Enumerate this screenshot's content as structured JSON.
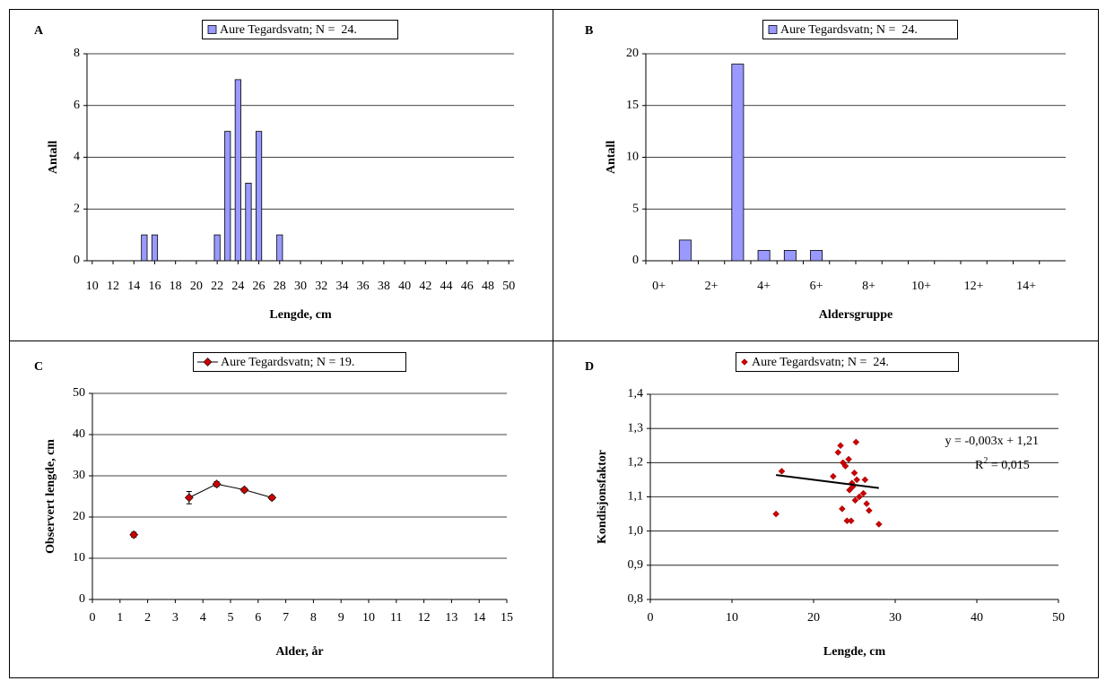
{
  "chart_data": [
    {
      "type": "bar",
      "panel_label": "A",
      "xlabel": "Lengde, cm",
      "ylabel": "Antall",
      "x": [
        15,
        16,
        22,
        23,
        24,
        25,
        26,
        28
      ],
      "series": [
        {
          "name": "Aure Tegardsvatn; N =  24.",
          "color": "#9999ff",
          "values": [
            1,
            1,
            1,
            5,
            7,
            3,
            5,
            1
          ]
        }
      ],
      "xlim": [
        9.5,
        50.5
      ],
      "xticks": [
        10,
        12,
        14,
        16,
        18,
        20,
        22,
        24,
        26,
        28,
        30,
        32,
        34,
        36,
        38,
        40,
        42,
        44,
        46,
        48,
        50
      ],
      "ylim": [
        0,
        8
      ],
      "yticks": [
        0,
        2,
        4,
        6,
        8
      ],
      "grid": true,
      "legend": "top"
    },
    {
      "type": "bar",
      "panel_label": "B",
      "xlabel": "Aldersgruppe",
      "ylabel": "Antall",
      "categories": [
        "0+",
        null,
        "2+",
        null,
        "4+",
        null,
        "6+",
        null,
        "8+",
        null,
        "10+",
        null,
        "12+",
        null,
        "14+",
        null
      ],
      "series": [
        {
          "name": "Aure Tegardsvatn; N =  24.",
          "color": "#9999ff",
          "values": [
            0,
            2,
            0,
            19,
            1,
            1,
            1,
            0,
            0,
            0,
            0,
            0,
            0,
            0,
            0,
            0
          ]
        }
      ],
      "ylim": [
        0,
        20
      ],
      "yticks": [
        0,
        5,
        10,
        15,
        20
      ],
      "grid": true,
      "legend": "top"
    },
    {
      "type": "line",
      "panel_label": "C",
      "xlabel": "Alder, år",
      "ylabel": "Observert lengde, cm",
      "x": [
        1.5,
        2.5,
        3.5,
        4.5,
        5.5,
        6.5
      ],
      "series": [
        {
          "name": "Aure Tegardsvatn; N = 19.",
          "color": "#cc0000",
          "values": [
            15.7,
            null,
            24.7,
            28.0,
            26.6,
            24.7
          ],
          "errors": [
            0.6,
            null,
            1.5,
            0.6,
            0.5,
            0.5
          ]
        }
      ],
      "xlim": [
        0,
        15
      ],
      "xticks": [
        0,
        1,
        2,
        3,
        4,
        5,
        6,
        7,
        8,
        9,
        10,
        11,
        12,
        13,
        14,
        15
      ],
      "ylim": [
        0,
        50
      ],
      "yticks": [
        0,
        10,
        20,
        30,
        40,
        50
      ],
      "grid": true,
      "legend": "top"
    },
    {
      "type": "scatter",
      "panel_label": "D",
      "xlabel": "Lengde, cm",
      "ylabel": "Kondisjonsfaktor",
      "x": [
        15.4,
        16.1,
        22.4,
        23.0,
        23.3,
        23.5,
        23.6,
        23.9,
        24.1,
        24.3,
        24.4,
        24.6,
        24.7,
        24.8,
        25.0,
        25.1,
        25.2,
        25.3,
        25.6,
        26.1,
        26.3,
        26.5,
        26.8,
        28.0
      ],
      "series": [
        {
          "name": "Aure Tegardsvatn; N =  24.",
          "color": "#cc0000",
          "values": [
            1.05,
            1.175,
            1.16,
            1.23,
            1.25,
            1.065,
            1.2,
            1.19,
            1.03,
            1.21,
            1.12,
            1.03,
            1.14,
            1.13,
            1.17,
            1.09,
            1.26,
            1.15,
            1.1,
            1.11,
            1.15,
            1.08,
            1.06,
            1.02
          ]
        }
      ],
      "trendline": {
        "x": [
          15.4,
          28.0
        ],
        "values": [
          1.164,
          1.126
        ],
        "color": "#000000"
      },
      "equation": "y = -0,003x + 1,21",
      "r_squared": [
        "R",
        "2",
        " = 0,015"
      ],
      "xlim": [
        0,
        50
      ],
      "xticks": [
        0,
        10,
        20,
        30,
        40,
        50
      ],
      "ylim": [
        0.8,
        1.4
      ],
      "yticks": [
        {
          "value": 0.8,
          "label": "0,8"
        },
        {
          "value": 0.9,
          "label": "0,9"
        },
        {
          "value": 1.0,
          "label": "1,0"
        },
        {
          "value": 1.1,
          "label": "1,1"
        },
        {
          "value": 1.2,
          "label": "1,2"
        },
        {
          "value": 1.3,
          "label": "1,3"
        },
        {
          "value": 1.4,
          "label": "1,4"
        }
      ],
      "grid": true,
      "legend": "top"
    }
  ]
}
